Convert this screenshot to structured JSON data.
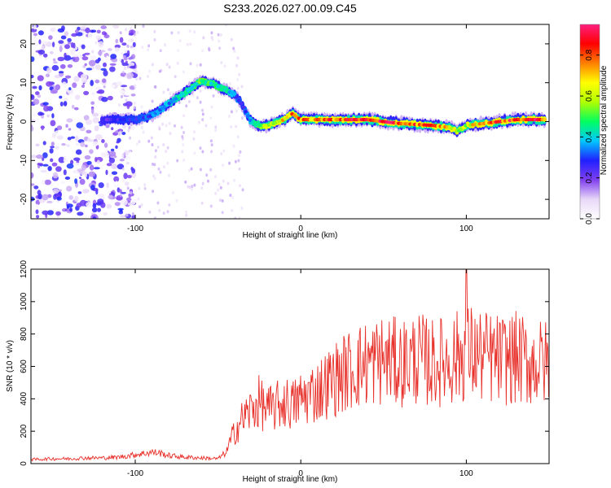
{
  "page_title": "S233.2026.027.00.09.C45",
  "chart_data": [
    {
      "type": "heatmap",
      "title": "S233.2026.027.00.09.C45",
      "xlabel": "Height of straight line (km)",
      "ylabel": "Frequency (Hz)",
      "xlim": [
        -163,
        150
      ],
      "ylim": [
        -25,
        25
      ],
      "xticks": [
        -100,
        0,
        100
      ],
      "yticks": [
        -20,
        -10,
        0,
        10,
        20
      ],
      "colorbar": {
        "label": "Normalized spectral amplitude",
        "range": [
          0,
          0.95
        ],
        "ticks": [
          0.0,
          0.2,
          0.4,
          0.6,
          0.8
        ],
        "colors": [
          "#ffffff",
          "#e8d8f8",
          "#8040f0",
          "#2020ff",
          "#00c8ff",
          "#00ff60",
          "#b0ff00",
          "#ffff00",
          "#ff8000",
          "#ff0000",
          "#ff2080"
        ]
      },
      "ridge": {
        "x": [
          -120,
          -110,
          -100,
          -90,
          -80,
          -70,
          -60,
          -55,
          -50,
          -45,
          -40,
          -35,
          -30,
          -25,
          -20,
          -10,
          -5,
          0,
          20,
          40,
          60,
          80,
          90,
          95,
          100,
          110,
          120,
          130,
          140,
          148
        ],
        "y": [
          0.5,
          0.5,
          0.5,
          1.5,
          4.5,
          7.5,
          10.5,
          10,
          9,
          8,
          7,
          4,
          0,
          -1,
          -1,
          0.5,
          2,
          0.5,
          0.5,
          0.5,
          -0.5,
          -1,
          -1.5,
          -2.5,
          -1,
          -0.5,
          0,
          0.5,
          0.5,
          0.5
        ],
        "amplitude": [
          0.25,
          0.3,
          0.3,
          0.35,
          0.4,
          0.45,
          0.55,
          0.5,
          0.5,
          0.45,
          0.35,
          0.3,
          0.4,
          0.55,
          0.65,
          0.75,
          0.85,
          0.8,
          0.9,
          0.95,
          0.9,
          0.85,
          0.75,
          0.6,
          0.65,
          0.85,
          0.9,
          0.92,
          0.95,
          0.9
        ]
      },
      "noise_region": {
        "x_max": -110,
        "amplitude": 0.3
      }
    },
    {
      "type": "line",
      "xlabel": "Height of straight line (km)",
      "ylabel": "SNR (10 * v/v)",
      "xlim": [
        -163,
        150
      ],
      "ylim": [
        0,
        1200
      ],
      "xticks": [
        -100,
        0,
        100
      ],
      "yticks": [
        0,
        200,
        400,
        600,
        800,
        1000,
        1200
      ],
      "series": [
        {
          "name": "SNR",
          "color": "#e8302a",
          "x": [
            -163,
            -150,
            -140,
            -130,
            -120,
            -110,
            -100,
            -90,
            -85,
            -80,
            -70,
            -60,
            -50,
            -45,
            -40,
            -35,
            -30,
            -25,
            -20,
            -15,
            -10,
            -5,
            0,
            10,
            20,
            30,
            40,
            50,
            60,
            70,
            80,
            90,
            95,
            100,
            110,
            120,
            130,
            140,
            150
          ],
          "y": [
            25,
            30,
            30,
            35,
            35,
            40,
            55,
            70,
            65,
            50,
            40,
            35,
            30,
            70,
            200,
            280,
            330,
            380,
            330,
            350,
            380,
            360,
            400,
            450,
            520,
            580,
            620,
            640,
            620,
            650,
            620,
            640,
            660,
            690,
            660,
            640,
            650,
            620,
            620
          ]
        }
      ]
    }
  ]
}
